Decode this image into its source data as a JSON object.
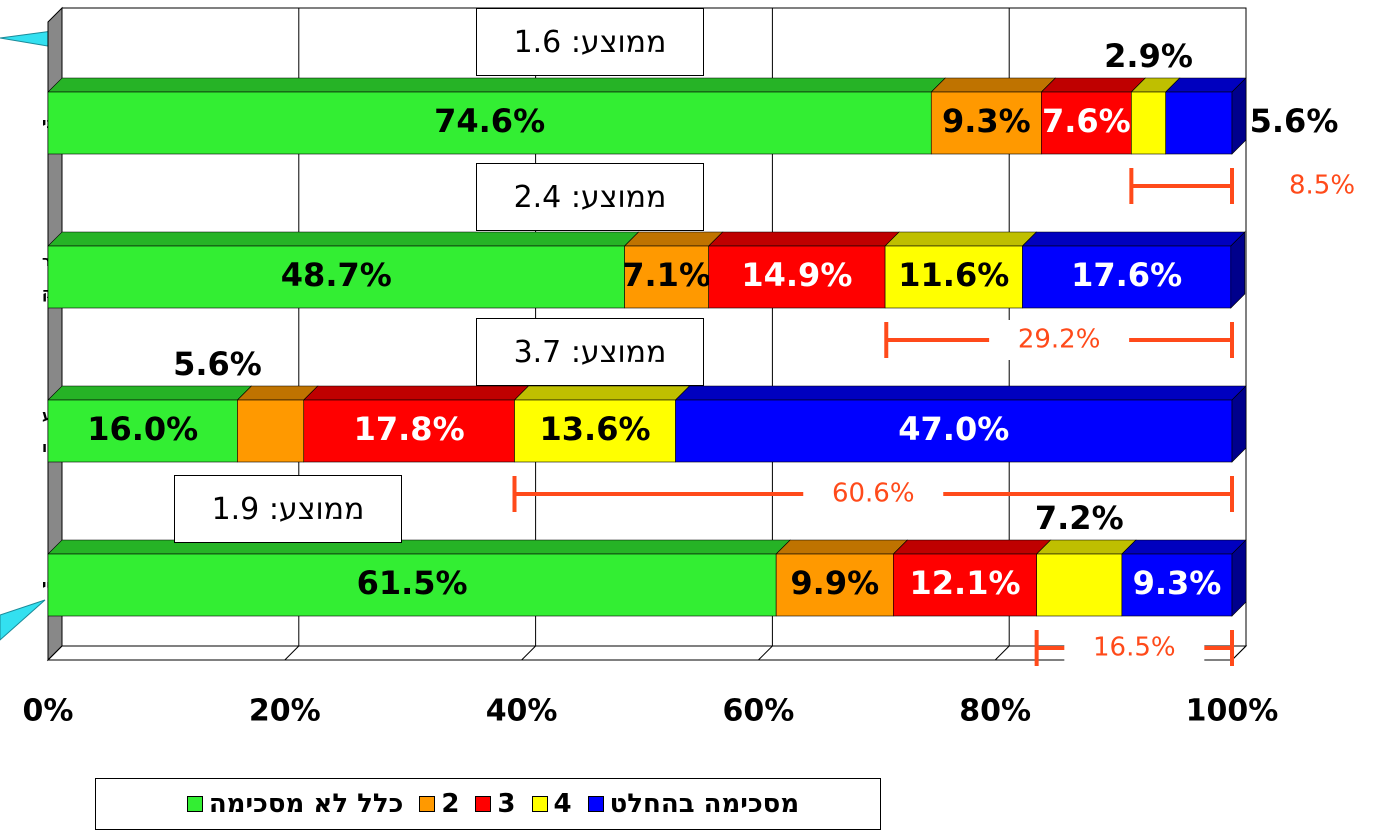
{
  "chart_data": {
    "type": "stacked-bar-horizontal",
    "categories": [
      "אני",
      "נר\nבק",
      "לע\nבנו",
      "היי"
    ],
    "series": [
      {
        "name": "כלל לא מסכימה",
        "color": "#33ee33",
        "values": [
          74.6,
          48.7,
          16.0,
          61.5
        ],
        "value_labels": [
          "74.6%",
          "48.7%",
          "16.0%",
          "61.5%"
        ]
      },
      {
        "name": "2",
        "color": "#ff9900",
        "values": [
          9.3,
          7.1,
          5.6,
          9.9
        ],
        "value_labels": [
          "9.3%",
          "7.1%",
          "5.6%",
          "9.9%"
        ]
      },
      {
        "name": "3",
        "color": "#ff0000",
        "values": [
          7.6,
          14.9,
          17.8,
          12.1
        ],
        "value_labels": [
          "7.6%",
          "14.9%",
          "17.8%",
          "12.1%"
        ]
      },
      {
        "name": "4",
        "color": "#ffff00",
        "values": [
          2.9,
          11.6,
          13.6,
          7.2
        ],
        "value_labels": [
          "2.9%",
          "11.6%",
          "13.6%",
          "7.2%"
        ]
      },
      {
        "name": "מסכימה בהחלט",
        "color": "#0000ff",
        "values": [
          5.6,
          17.6,
          47.0,
          9.3
        ],
        "value_labels": [
          "5.6%",
          "17.6%",
          "47.0%",
          "9.3%"
        ]
      }
    ],
    "means": [
      "ממוצע: 1.6",
      "ממוצע: 2.4",
      "ממוצע: 3.7",
      "ממוצע: 1.9"
    ],
    "top_two": {
      "color": "#ff4a1a",
      "values": [
        8.5,
        29.2,
        60.6,
        16.5
      ],
      "value_labels": [
        "8.5%",
        "29.2%",
        "60.6%",
        "16.5%"
      ]
    },
    "xlim": [
      0,
      100
    ],
    "xticks": [
      {
        "value": 0,
        "label": "0%"
      },
      {
        "value": 20,
        "label": "20%"
      },
      {
        "value": 40,
        "label": "40%"
      },
      {
        "value": 60,
        "label": "60%"
      },
      {
        "value": 80,
        "label": "80%"
      },
      {
        "value": 100,
        "label": "100%"
      }
    ],
    "grid": true
  }
}
